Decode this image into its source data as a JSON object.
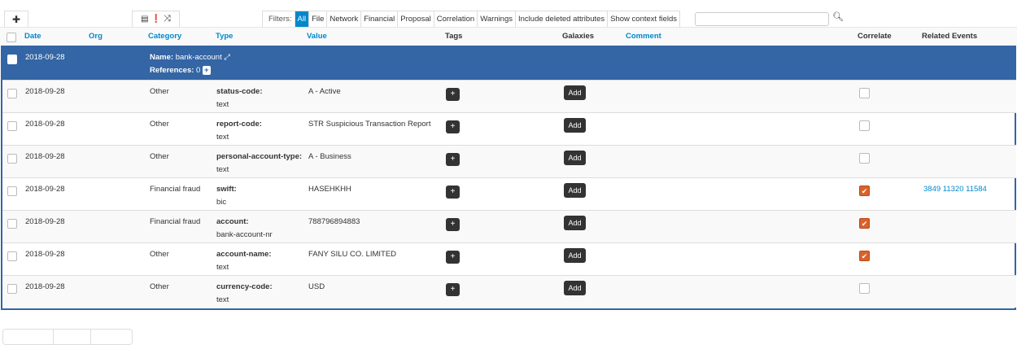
{
  "toolbar": {
    "add_icon": "plus-icon",
    "view_icons": [
      "list-icon",
      "exclamation-icon",
      "shuffle-icon"
    ]
  },
  "filters": {
    "label": "Filters:",
    "items": [
      "All",
      "File",
      "Network",
      "Financial",
      "Proposal",
      "Correlation",
      "Warnings",
      "Include deleted attributes",
      "Show context fields"
    ],
    "active": "All",
    "search_value": "",
    "search_icon": "search-icon"
  },
  "columns": {
    "date": "Date",
    "org": "Org",
    "category": "Category",
    "type": "Type",
    "value": "Value",
    "tags": "Tags",
    "galaxies": "Galaxies",
    "comment": "Comment",
    "correlate": "Correlate",
    "related": "Related Events"
  },
  "object": {
    "date": "2018-09-28",
    "name_label": "Name:",
    "name": "bank-account",
    "refs_label": "References:",
    "refs": "0"
  },
  "buttons": {
    "tag_add": "+",
    "galaxy_add": "Add"
  },
  "colors": {
    "accent": "#0088cc",
    "object": "#3465a4",
    "correlate": "#d9622b"
  },
  "rows": [
    {
      "date": "2018-09-28",
      "category": "Other",
      "type": "status-code:",
      "subtype": "text",
      "value": "A - Active",
      "correlate": false,
      "related": ""
    },
    {
      "date": "2018-09-28",
      "category": "Other",
      "type": "report-code:",
      "subtype": "text",
      "value": "STR Suspicious Transaction Report",
      "correlate": false,
      "related": ""
    },
    {
      "date": "2018-09-28",
      "category": "Other",
      "type": "personal-account-type:",
      "subtype": "text",
      "value": "A - Business",
      "correlate": false,
      "related": ""
    },
    {
      "date": "2018-09-28",
      "category": "Financial fraud",
      "type": "swift:",
      "subtype": "bic",
      "value": "HASEHKHH",
      "correlate": true,
      "related": "3849 11320 11584"
    },
    {
      "date": "2018-09-28",
      "category": "Financial fraud",
      "type": "account:",
      "subtype": "bank-account-nr",
      "value": "788796894883",
      "correlate": true,
      "related": ""
    },
    {
      "date": "2018-09-28",
      "category": "Other",
      "type": "account-name:",
      "subtype": "text",
      "value": "FANY SILU CO. LIMITED",
      "correlate": true,
      "related": ""
    },
    {
      "date": "2018-09-28",
      "category": "Other",
      "type": "currency-code:",
      "subtype": "text",
      "value": "USD",
      "correlate": false,
      "related": ""
    }
  ]
}
